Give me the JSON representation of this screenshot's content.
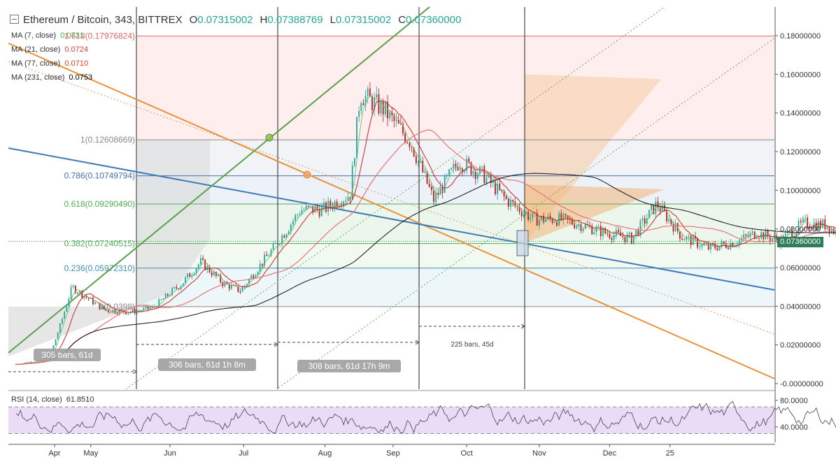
{
  "header": {
    "symbol": "Ethereum / Bitcoin, 343, BITTREX",
    "open_label": "O",
    "open": "0.07315002",
    "high_label": "H",
    "high": "0.07388769",
    "low_label": "L",
    "low": "0.07315002",
    "close_label": "C",
    "close": "0.07360000"
  },
  "moving_averages": [
    {
      "label": "MA (7, close)",
      "value": "0.0731",
      "color": "#4caf50"
    },
    {
      "label": "MA (21, close)",
      "value": "0.0724",
      "color": "#e53935"
    },
    {
      "label": "MA (77, close)",
      "value": "0.0710",
      "color": "#d84315"
    },
    {
      "label": "MA (231, close)",
      "value": "0.0753",
      "color": "#000000"
    }
  ],
  "last_price": "0.07360000",
  "colors": {
    "candle_up": "#26a69a",
    "candle_down": "#b71c1c",
    "ma7": "#66bb6a",
    "ma21": "#c62828",
    "ma77": "#e57373",
    "ma231": "#000000",
    "trend_orange": "#e8923a",
    "trend_blue": "#3c7bb5",
    "trend_green": "#5aa04c",
    "rsi_line": "#5b4b6b",
    "rsi_band": "#eadcf7"
  },
  "chart_data": {
    "type": "candlestick",
    "title": "Ethereum / Bitcoin, 343, BITTREX",
    "y_axis": {
      "min": 0.0,
      "max": 0.18,
      "position": "right",
      "ticks": [
        "0.18000000",
        "0.16000000",
        "0.14000000",
        "0.12000000",
        "0.10000000",
        "0.08000000",
        "0.06000000",
        "0.04000000",
        "0.02000000",
        "-0.00000000"
      ],
      "tick_values": [
        0.18,
        0.16,
        0.14,
        0.12,
        0.1,
        0.08,
        0.06,
        0.04,
        0.02,
        0.0
      ]
    },
    "x_axis": {
      "ticks": [
        "Apr",
        "May",
        "Jun",
        "Jul",
        "Aug",
        "Sep",
        "Oct",
        "Nov",
        "Dec",
        "25"
      ],
      "tick_days": [
        12,
        45,
        117,
        184,
        258,
        320,
        387,
        453,
        517,
        572
      ],
      "day_range": [
        -30,
        667
      ]
    },
    "price_series": {
      "approx_close_path": [
        [
          -23,
          0.01
        ],
        [
          0,
          0.012
        ],
        [
          9,
          0.016
        ],
        [
          17,
          0.03
        ],
        [
          28,
          0.05
        ],
        [
          40,
          0.045
        ],
        [
          58,
          0.038
        ],
        [
          80,
          0.037
        ],
        [
          101,
          0.039
        ],
        [
          128,
          0.052
        ],
        [
          145,
          0.063
        ],
        [
          165,
          0.052
        ],
        [
          181,
          0.048
        ],
        [
          211,
          0.07
        ],
        [
          236,
          0.09
        ],
        [
          256,
          0.09
        ],
        [
          281,
          0.098
        ],
        [
          290,
          0.15
        ],
        [
          311,
          0.142
        ],
        [
          336,
          0.125
        ],
        [
          357,
          0.095
        ],
        [
          380,
          0.115
        ],
        [
          402,
          0.108
        ],
        [
          423,
          0.095
        ],
        [
          448,
          0.085
        ],
        [
          471,
          0.085
        ],
        [
          492,
          0.082
        ],
        [
          513,
          0.078
        ],
        [
          537,
          0.075
        ],
        [
          560,
          0.093
        ],
        [
          583,
          0.076
        ],
        [
          607,
          0.07
        ],
        [
          630,
          0.073
        ],
        [
          651,
          0.078
        ],
        [
          672,
          0.074
        ],
        [
          694,
          0.083
        ],
        [
          715,
          0.082
        ],
        [
          738,
          0.071
        ],
        [
          761,
          0.069
        ],
        [
          780,
          0.0736
        ]
      ]
    },
    "fibonacci_levels": [
      {
        "ratio": "1",
        "value": 0.12608669,
        "label": "1(0.12608669)"
      },
      {
        "ratio": "0.786",
        "value": 0.10749794,
        "label": "0.786(0.10749794)"
      },
      {
        "ratio": "0.618",
        "value": 0.0929049,
        "label": "0.618(0.09290490)"
      },
      {
        "ratio": "0.382",
        "value": 0.07240515,
        "label": "0.382(0.07240515)"
      },
      {
        "ratio": "0.236",
        "value": 0.0597231,
        "label": "0.236(0.05972310)"
      },
      {
        "ratio": "0",
        "value": 0.0398,
        "label": "0(0.0398)"
      }
    ],
    "fib_extension_label": "1.618(0.17976824)",
    "fib_extension_value": 0.17976824,
    "bar_ranges": [
      {
        "label": "305 bars, 61d"
      },
      {
        "label": "306 bars, 61d 1h 8m"
      },
      {
        "label": "308 bars, 61d 17h 9m"
      },
      {
        "label": "225 bars, 45d"
      }
    ],
    "rsi": {
      "label": "RSI (14, close)",
      "value": "61.8510",
      "ticks": [
        "80.0000",
        "40.0000"
      ],
      "tick_values": [
        80,
        40
      ],
      "upper_band": 70,
      "lower_band": 30
    },
    "grid": false,
    "legend": "top-left"
  }
}
